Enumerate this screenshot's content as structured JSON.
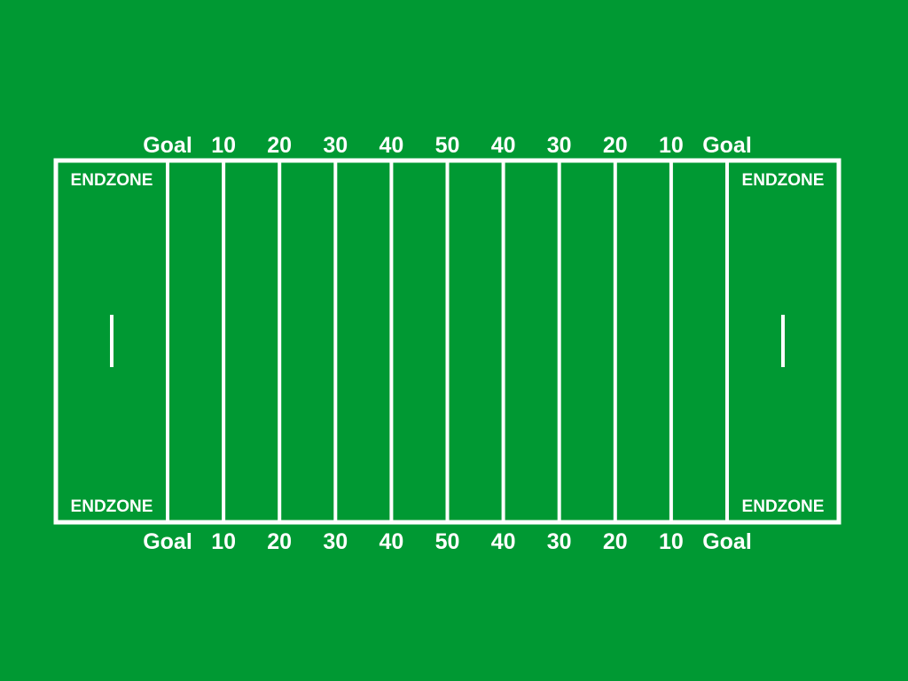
{
  "field": {
    "background_color": "#009933",
    "line_color": "#ffffff",
    "yard_labels": [
      "Goal",
      "10",
      "20",
      "30",
      "40",
      "50",
      "40",
      "30",
      "20",
      "10",
      "Goal"
    ],
    "endzone_label": "ENDZONE"
  }
}
